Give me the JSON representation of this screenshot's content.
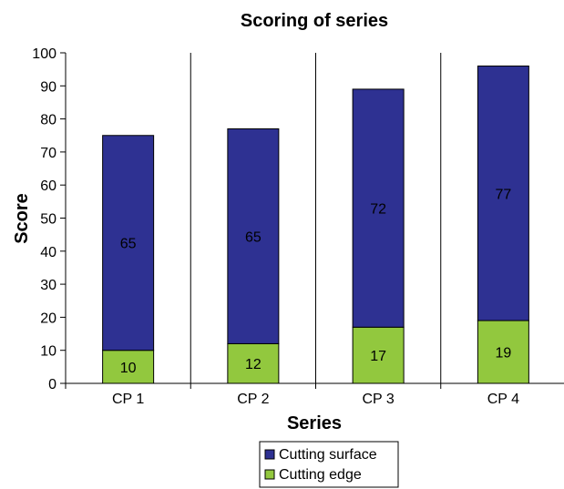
{
  "chart_data": {
    "type": "bar",
    "stacked": true,
    "title": "Scoring of series",
    "xlabel": "Series",
    "ylabel": "Score",
    "ylim": [
      0,
      100
    ],
    "yticks": [
      0,
      10,
      20,
      30,
      40,
      50,
      60,
      70,
      80,
      90,
      100
    ],
    "categories": [
      "CP 1",
      "CP 2",
      "CP 3",
      "CP 4"
    ],
    "series": [
      {
        "name": "Cutting edge",
        "values": [
          10,
          12,
          17,
          19
        ],
        "labels": [
          "10",
          "12",
          "17",
          "19"
        ],
        "color": "#92c83e"
      },
      {
        "name": "Cutting surface",
        "values": [
          65,
          65,
          72,
          77
        ],
        "labels": [
          "65",
          "65",
          "72",
          "77"
        ],
        "color": "#2e3192"
      }
    ],
    "legend": {
      "position": "bottom",
      "order": [
        "Cutting surface",
        "Cutting edge"
      ]
    },
    "grid": false,
    "category_separators": true
  }
}
